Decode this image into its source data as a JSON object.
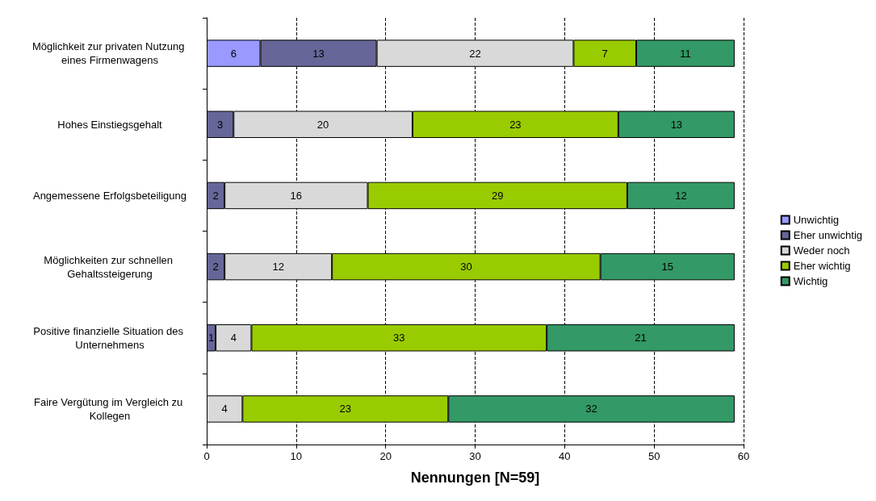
{
  "chart_data": {
    "type": "bar",
    "orientation": "horizontal",
    "stacked": true,
    "xlabel": "Nennungen [N=59]",
    "categories": [
      "Möglichkeit zur privaten Nutzung eines Firmenwagens",
      "Hohes Einstiegsgehalt",
      "Angemessene Erfolgsbeteiligung",
      "Möglichkeiten zur schnellen Gehaltssteigerung",
      "Positive finanzielle Situation des Unternehmens",
      "Faire Vergütung im Vergleich zu Kollegen"
    ],
    "series": [
      {
        "name": "Unwichtig",
        "color": "#9999ff",
        "values": [
          6,
          null,
          null,
          null,
          null,
          null
        ]
      },
      {
        "name": "Eher unwichtig",
        "color": "#666699",
        "values": [
          13,
          3,
          2,
          2,
          1,
          null
        ]
      },
      {
        "name": "Weder noch",
        "color": "#d9d9d9",
        "values": [
          22,
          20,
          16,
          12,
          4,
          4
        ]
      },
      {
        "name": "Eher wichtig",
        "color": "#99cc00",
        "values": [
          7,
          23,
          29,
          30,
          33,
          23
        ]
      },
      {
        "name": "Wichtig",
        "color": "#339966",
        "values": [
          11,
          13,
          12,
          15,
          21,
          32
        ]
      }
    ],
    "xlim": [
      0,
      60
    ],
    "xticks": [
      0,
      10,
      20,
      30,
      40,
      50,
      60
    ],
    "grid": "x",
    "legend": "right",
    "data_labels": true
  }
}
